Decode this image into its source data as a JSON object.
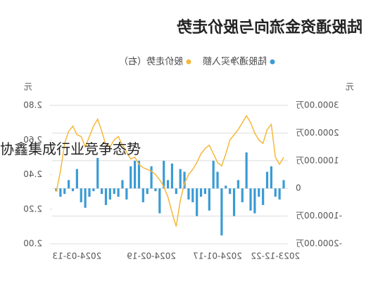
{
  "overlay": "协鑫集成行业竞争态势",
  "chart_data": {
    "type": "combo",
    "title": "陆股通资金流向与股价走势",
    "y_unit": "元",
    "y2_unit": "元",
    "grid": true,
    "categories": [
      null,
      null,
      "2023-12-22",
      null,
      null,
      null,
      null,
      null,
      null,
      null,
      null,
      null,
      null,
      null,
      null,
      null,
      "2024-01-17",
      null,
      null,
      null,
      null,
      null,
      null,
      null,
      null,
      null,
      null,
      null,
      null,
      null,
      null,
      null,
      "2024-02-19",
      null,
      null,
      null,
      null,
      null,
      null,
      null,
      null,
      null,
      null,
      null,
      null,
      null,
      null,
      null,
      null,
      null,
      "2024-03-13",
      null,
      null,
      null,
      null,
      null
    ],
    "series": [
      {
        "name": "陆股通净买入额",
        "type": "bar",
        "color": "#3a9bd5",
        "values": [
          300,
          -400,
          -300,
          800,
          600,
          -600,
          -300,
          -900,
          -800,
          1300,
          -500,
          300,
          -1000,
          -200,
          100,
          -1700,
          600,
          1000,
          -800,
          -200,
          -300,
          -1000,
          -500,
          -400,
          600,
          700,
          -200,
          900,
          300,
          1000,
          -900,
          -100,
          800,
          -200,
          -500,
          1000,
          1000,
          800,
          -400,
          300,
          -300,
          -200,
          -400,
          -600,
          -200,
          1100,
          -100,
          -300,
          -700,
          -500,
          700,
          -100,
          300,
          -200,
          -300,
          -100
        ]
      },
      {
        "name": "股价走势（右）",
        "type": "line",
        "axis": "y2",
        "color": "#f5b83a",
        "values": [
          2.5,
          2.46,
          2.5,
          2.69,
          2.66,
          2.58,
          2.6,
          2.64,
          2.7,
          2.74,
          2.7,
          2.66,
          2.63,
          2.6,
          2.52,
          2.45,
          2.47,
          2.52,
          2.57,
          2.55,
          2.52,
          2.47,
          2.43,
          2.4,
          2.35,
          2.25,
          2.1,
          2.18,
          2.27,
          2.33,
          2.37,
          2.4,
          2.42,
          2.43,
          2.44,
          2.46,
          2.5,
          2.49,
          2.53,
          2.57,
          2.62,
          2.6,
          2.56,
          2.57,
          2.65,
          2.72,
          2.68,
          2.62,
          2.56,
          2.62,
          2.63,
          2.68,
          2.65,
          2.58,
          2.42,
          2.3
        ]
      }
    ],
    "ylim": [
      -2000,
      3000
    ],
    "yticks": [
      {
        "value": -2000,
        "label": "-2000.00万"
      },
      {
        "value": -1000,
        "label": "-1000.00万"
      },
      0,
      {
        "value": 1000,
        "label": "1000.00万"
      },
      {
        "value": 2000,
        "label": "2000.00万"
      },
      {
        "value": 3000,
        "label": "3000.00万"
      }
    ],
    "y2lim": [
      2.0,
      2.8
    ],
    "y2ticks": [
      {
        "value": 2.0,
        "label": "2.00"
      },
      {
        "value": 2.2,
        "label": "2.20"
      },
      {
        "value": 2.4,
        "label": "2.40"
      },
      {
        "value": 2.6,
        "label": "2.60"
      },
      {
        "value": 2.8,
        "label": "2.80"
      }
    ]
  }
}
